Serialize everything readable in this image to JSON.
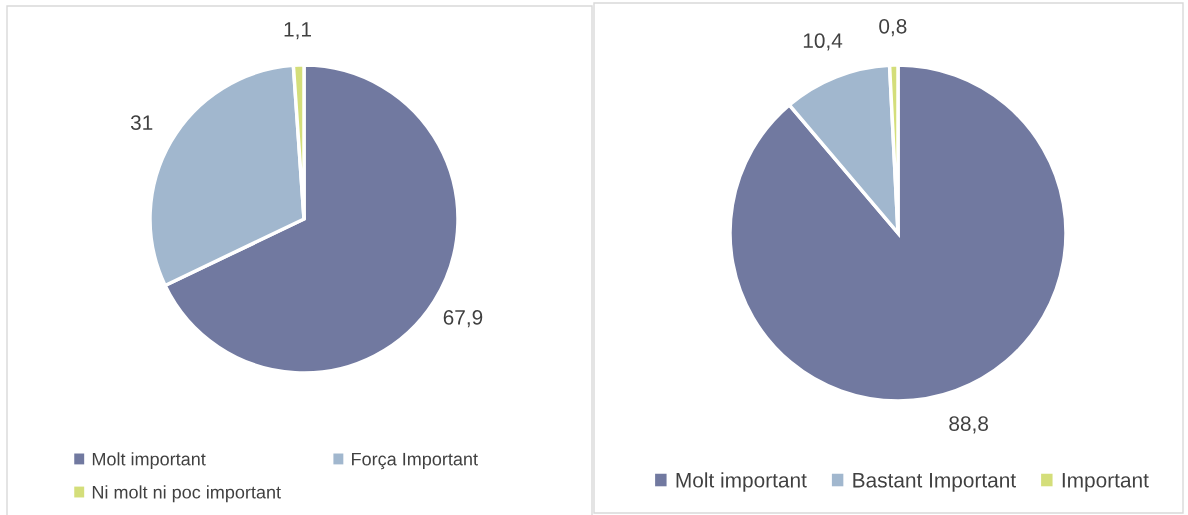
{
  "chart_data": [
    {
      "type": "pie",
      "categories": [
        "Molt important",
        "Força Important",
        "Ni molt ni poc important"
      ],
      "values": [
        67.9,
        31,
        1.1
      ],
      "colors": [
        "#7179a0",
        "#a1b7ce",
        "#d4de7a"
      ],
      "value_labels": [
        "67,9",
        "31",
        "1,1"
      ],
      "legend": "bottom"
    },
    {
      "type": "pie",
      "categories": [
        "Molt important",
        "Bastant Important",
        "Important"
      ],
      "values": [
        88.8,
        10.4,
        0.8
      ],
      "colors": [
        "#7179a0",
        "#a1b7ce",
        "#d4de7a"
      ],
      "value_labels": [
        "88,8",
        "10,4",
        "0,8"
      ],
      "legend": "bottom"
    }
  ]
}
